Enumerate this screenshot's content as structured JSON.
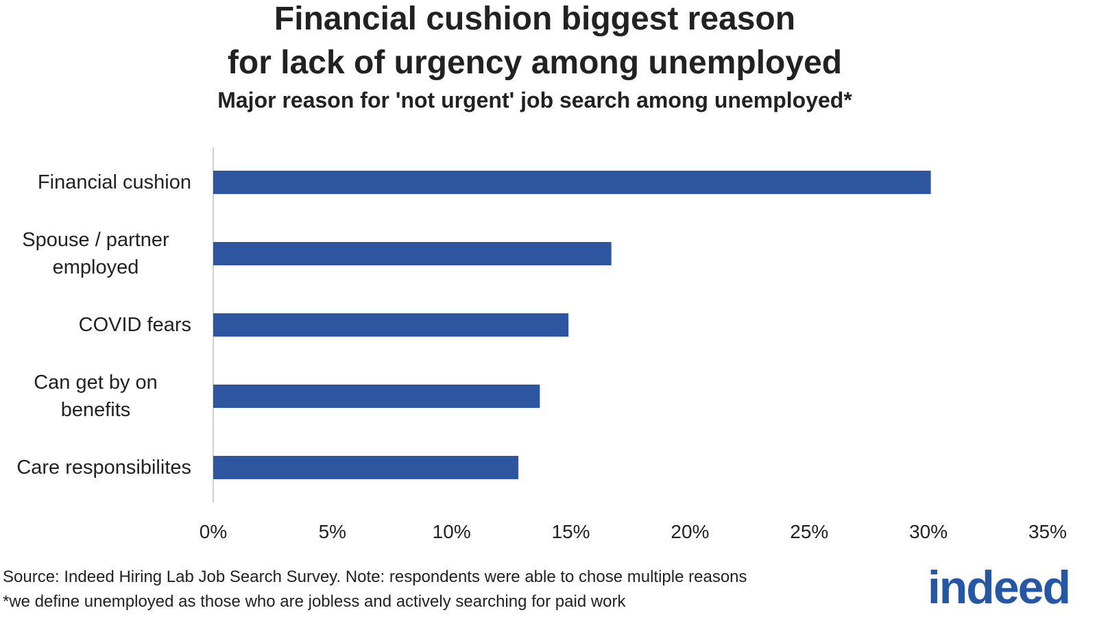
{
  "chart_data": {
    "type": "bar",
    "orientation": "horizontal",
    "title": [
      "Financial cushion biggest reason",
      "for lack of urgency among unemployed"
    ],
    "subtitle": "Major reason for 'not urgent' job search among unemployed*",
    "categories": [
      "Financial cushion",
      "Spouse / partner employed",
      "COVID fears",
      "Can get by on benefits",
      "Care responsibilites"
    ],
    "values": [
      30.1,
      16.7,
      14.9,
      13.7,
      12.8
    ],
    "color": "#2e55a0",
    "xlim": [
      0,
      35
    ],
    "xticks": [
      {
        "value": 0,
        "label": "0%"
      },
      {
        "value": 5,
        "label": "5%"
      },
      {
        "value": 10,
        "label": "10%"
      },
      {
        "value": 15,
        "label": "15%"
      },
      {
        "value": 20,
        "label": "20%"
      },
      {
        "value": 25,
        "label": "25%"
      },
      {
        "value": 30,
        "label": "30%"
      },
      {
        "value": 35,
        "label": "35%"
      }
    ],
    "grid": false,
    "notes": [
      "Source: Indeed Hiring Lab Job Search Survey. Note: respondents were able to chose multiple reasons",
      "*we define unemployed as those who are jobless and actively searching for paid work"
    ],
    "logo": "indeed"
  }
}
